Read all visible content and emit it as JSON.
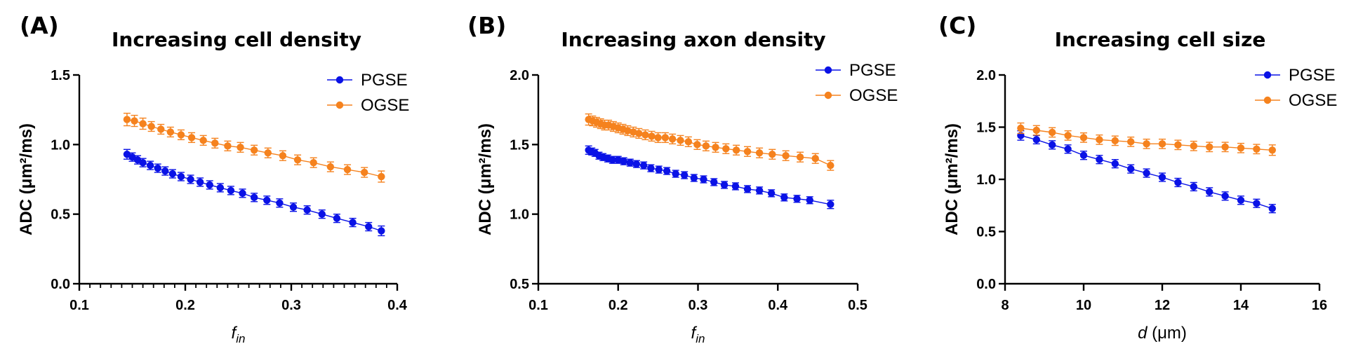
{
  "colors": {
    "pgse": "#0a12e6",
    "ogse": "#f5821e",
    "axis": "#000000"
  },
  "chart_data": [
    {
      "type": "line",
      "panel_label": "(A)",
      "title": "Increasing cell density",
      "xlabel": {
        "symbol": "f",
        "subscript": "in",
        "unit": ""
      },
      "ylabel": "ADC (μm²/ms)",
      "xlim": [
        0.1,
        0.4
      ],
      "ylim": [
        0.0,
        1.5
      ],
      "x_ticks": [
        0.1,
        0.2,
        0.3,
        0.4
      ],
      "x_tick_labels": [
        "0.1",
        "0.2",
        "0.3",
        "0.4"
      ],
      "x_minor_step": 0.01,
      "y_ticks": [
        0.0,
        0.5,
        1.0,
        1.5
      ],
      "y_tick_labels": [
        "0.0",
        "0.5",
        "1.0",
        "1.5"
      ],
      "legend_position": "top-right",
      "series": [
        {
          "name": "PGSE",
          "color_key": "pgse",
          "x": [
            0.145,
            0.15,
            0.155,
            0.16,
            0.167,
            0.174,
            0.181,
            0.188,
            0.196,
            0.205,
            0.214,
            0.223,
            0.233,
            0.243,
            0.254,
            0.265,
            0.277,
            0.289,
            0.302,
            0.315,
            0.329,
            0.343,
            0.358,
            0.373,
            0.385
          ],
          "y": [
            0.93,
            0.91,
            0.89,
            0.87,
            0.85,
            0.83,
            0.81,
            0.79,
            0.77,
            0.75,
            0.73,
            0.71,
            0.69,
            0.67,
            0.65,
            0.62,
            0.6,
            0.58,
            0.55,
            0.53,
            0.5,
            0.47,
            0.44,
            0.41,
            0.38
          ],
          "err": [
            0.035,
            0.03,
            0.03,
            0.03,
            0.03,
            0.03,
            0.03,
            0.03,
            0.03,
            0.03,
            0.03,
            0.03,
            0.03,
            0.03,
            0.03,
            0.03,
            0.03,
            0.03,
            0.03,
            0.03,
            0.03,
            0.03,
            0.03,
            0.03,
            0.035
          ]
        },
        {
          "name": "OGSE",
          "color_key": "ogse",
          "x": [
            0.145,
            0.152,
            0.16,
            0.168,
            0.177,
            0.186,
            0.196,
            0.206,
            0.217,
            0.228,
            0.24,
            0.252,
            0.265,
            0.278,
            0.292,
            0.306,
            0.321,
            0.337,
            0.353,
            0.369,
            0.385
          ],
          "y": [
            1.18,
            1.17,
            1.15,
            1.13,
            1.11,
            1.09,
            1.07,
            1.05,
            1.03,
            1.01,
            0.99,
            0.98,
            0.96,
            0.94,
            0.92,
            0.89,
            0.87,
            0.84,
            0.82,
            0.8,
            0.77
          ],
          "err": [
            0.045,
            0.04,
            0.04,
            0.035,
            0.035,
            0.035,
            0.035,
            0.035,
            0.035,
            0.035,
            0.035,
            0.035,
            0.035,
            0.035,
            0.035,
            0.035,
            0.035,
            0.035,
            0.035,
            0.035,
            0.04
          ]
        }
      ]
    },
    {
      "type": "line",
      "panel_label": "(B)",
      "title": "Increasing axon density",
      "xlabel": {
        "symbol": "f",
        "subscript": "in",
        "unit": ""
      },
      "ylabel": "ADC (μm²/ms)",
      "xlim": [
        0.1,
        0.5
      ],
      "ylim": [
        0.5,
        2.0
      ],
      "x_ticks": [
        0.1,
        0.2,
        0.3,
        0.4,
        0.5
      ],
      "x_tick_labels": [
        "0.1",
        "0.2",
        "0.3",
        "0.4",
        "0.5"
      ],
      "x_minor_step": null,
      "y_ticks": [
        0.5,
        1.0,
        1.5,
        2.0
      ],
      "y_tick_labels": [
        "0.5",
        "1.0",
        "1.5",
        "2.0"
      ],
      "legend_position": "top-right",
      "series": [
        {
          "name": "PGSE",
          "color_key": "pgse",
          "x": [
            0.163,
            0.167,
            0.171,
            0.176,
            0.181,
            0.187,
            0.193,
            0.2,
            0.207,
            0.215,
            0.223,
            0.232,
            0.241,
            0.251,
            0.261,
            0.272,
            0.283,
            0.295,
            0.307,
            0.32,
            0.333,
            0.347,
            0.362,
            0.377,
            0.392,
            0.408,
            0.424,
            0.44,
            0.466
          ],
          "y": [
            1.46,
            1.45,
            1.44,
            1.42,
            1.41,
            1.4,
            1.39,
            1.39,
            1.38,
            1.37,
            1.36,
            1.35,
            1.33,
            1.32,
            1.31,
            1.29,
            1.28,
            1.26,
            1.25,
            1.23,
            1.21,
            1.2,
            1.18,
            1.17,
            1.15,
            1.12,
            1.11,
            1.1,
            1.07
          ],
          "err": [
            0.03,
            0.025,
            0.025,
            0.025,
            0.025,
            0.025,
            0.025,
            0.025,
            0.025,
            0.025,
            0.025,
            0.025,
            0.025,
            0.025,
            0.025,
            0.025,
            0.025,
            0.025,
            0.025,
            0.025,
            0.025,
            0.025,
            0.025,
            0.025,
            0.025,
            0.025,
            0.025,
            0.025,
            0.03
          ]
        },
        {
          "name": "OGSE",
          "color_key": "ogse",
          "x": [
            0.163,
            0.168,
            0.173,
            0.178,
            0.183,
            0.188,
            0.194,
            0.2,
            0.206,
            0.212,
            0.219,
            0.226,
            0.234,
            0.242,
            0.25,
            0.259,
            0.268,
            0.278,
            0.288,
            0.299,
            0.31,
            0.322,
            0.335,
            0.348,
            0.362,
            0.377,
            0.393,
            0.41,
            0.428,
            0.447,
            0.466
          ],
          "y": [
            1.68,
            1.67,
            1.66,
            1.65,
            1.64,
            1.64,
            1.63,
            1.62,
            1.61,
            1.6,
            1.59,
            1.58,
            1.57,
            1.56,
            1.55,
            1.55,
            1.54,
            1.53,
            1.52,
            1.5,
            1.49,
            1.48,
            1.47,
            1.46,
            1.45,
            1.44,
            1.43,
            1.42,
            1.41,
            1.4,
            1.35
          ],
          "err": [
            0.04,
            0.035,
            0.035,
            0.035,
            0.035,
            0.035,
            0.035,
            0.035,
            0.035,
            0.035,
            0.035,
            0.035,
            0.035,
            0.035,
            0.035,
            0.035,
            0.035,
            0.035,
            0.035,
            0.035,
            0.035,
            0.035,
            0.035,
            0.035,
            0.035,
            0.035,
            0.035,
            0.035,
            0.035,
            0.035,
            0.035
          ]
        }
      ]
    },
    {
      "type": "line",
      "panel_label": "(C)",
      "title": "Increasing cell size",
      "xlabel": {
        "symbol": "d",
        "subscript": "",
        "unit": " (μm)"
      },
      "ylabel": "ADC (μm²/ms)",
      "xlim": [
        8,
        16
      ],
      "ylim": [
        0.0,
        2.0
      ],
      "x_ticks": [
        8,
        10,
        12,
        14,
        16
      ],
      "x_tick_labels": [
        "8",
        "10",
        "12",
        "14",
        "16"
      ],
      "x_minor_step": null,
      "y_ticks": [
        0.0,
        0.5,
        1.0,
        1.5,
        2.0
      ],
      "y_tick_labels": [
        "0.0",
        "0.5",
        "1.0",
        "1.5",
        "2.0"
      ],
      "legend_position": "top-right",
      "series": [
        {
          "name": "PGSE",
          "color_key": "pgse",
          "x": [
            8.4,
            8.8,
            9.2,
            9.6,
            10.0,
            10.4,
            10.8,
            11.2,
            11.6,
            12.0,
            12.4,
            12.8,
            13.2,
            13.6,
            14.0,
            14.4,
            14.8
          ],
          "y": [
            1.42,
            1.38,
            1.33,
            1.29,
            1.23,
            1.19,
            1.15,
            1.1,
            1.06,
            1.02,
            0.97,
            0.93,
            0.88,
            0.84,
            0.8,
            0.77,
            0.72
          ],
          "err": [
            0.045,
            0.04,
            0.04,
            0.04,
            0.04,
            0.04,
            0.04,
            0.04,
            0.04,
            0.04,
            0.04,
            0.04,
            0.04,
            0.04,
            0.04,
            0.04,
            0.04
          ]
        },
        {
          "name": "OGSE",
          "color_key": "ogse",
          "x": [
            8.4,
            8.8,
            9.2,
            9.6,
            10.0,
            10.4,
            10.8,
            11.2,
            11.6,
            12.0,
            12.4,
            12.8,
            13.2,
            13.6,
            14.0,
            14.4,
            14.8
          ],
          "y": [
            1.49,
            1.47,
            1.45,
            1.42,
            1.4,
            1.38,
            1.37,
            1.36,
            1.34,
            1.34,
            1.33,
            1.32,
            1.31,
            1.31,
            1.3,
            1.29,
            1.28
          ],
          "err": [
            0.05,
            0.045,
            0.045,
            0.045,
            0.045,
            0.045,
            0.045,
            0.045,
            0.045,
            0.045,
            0.045,
            0.045,
            0.045,
            0.045,
            0.045,
            0.045,
            0.05
          ]
        }
      ]
    }
  ]
}
